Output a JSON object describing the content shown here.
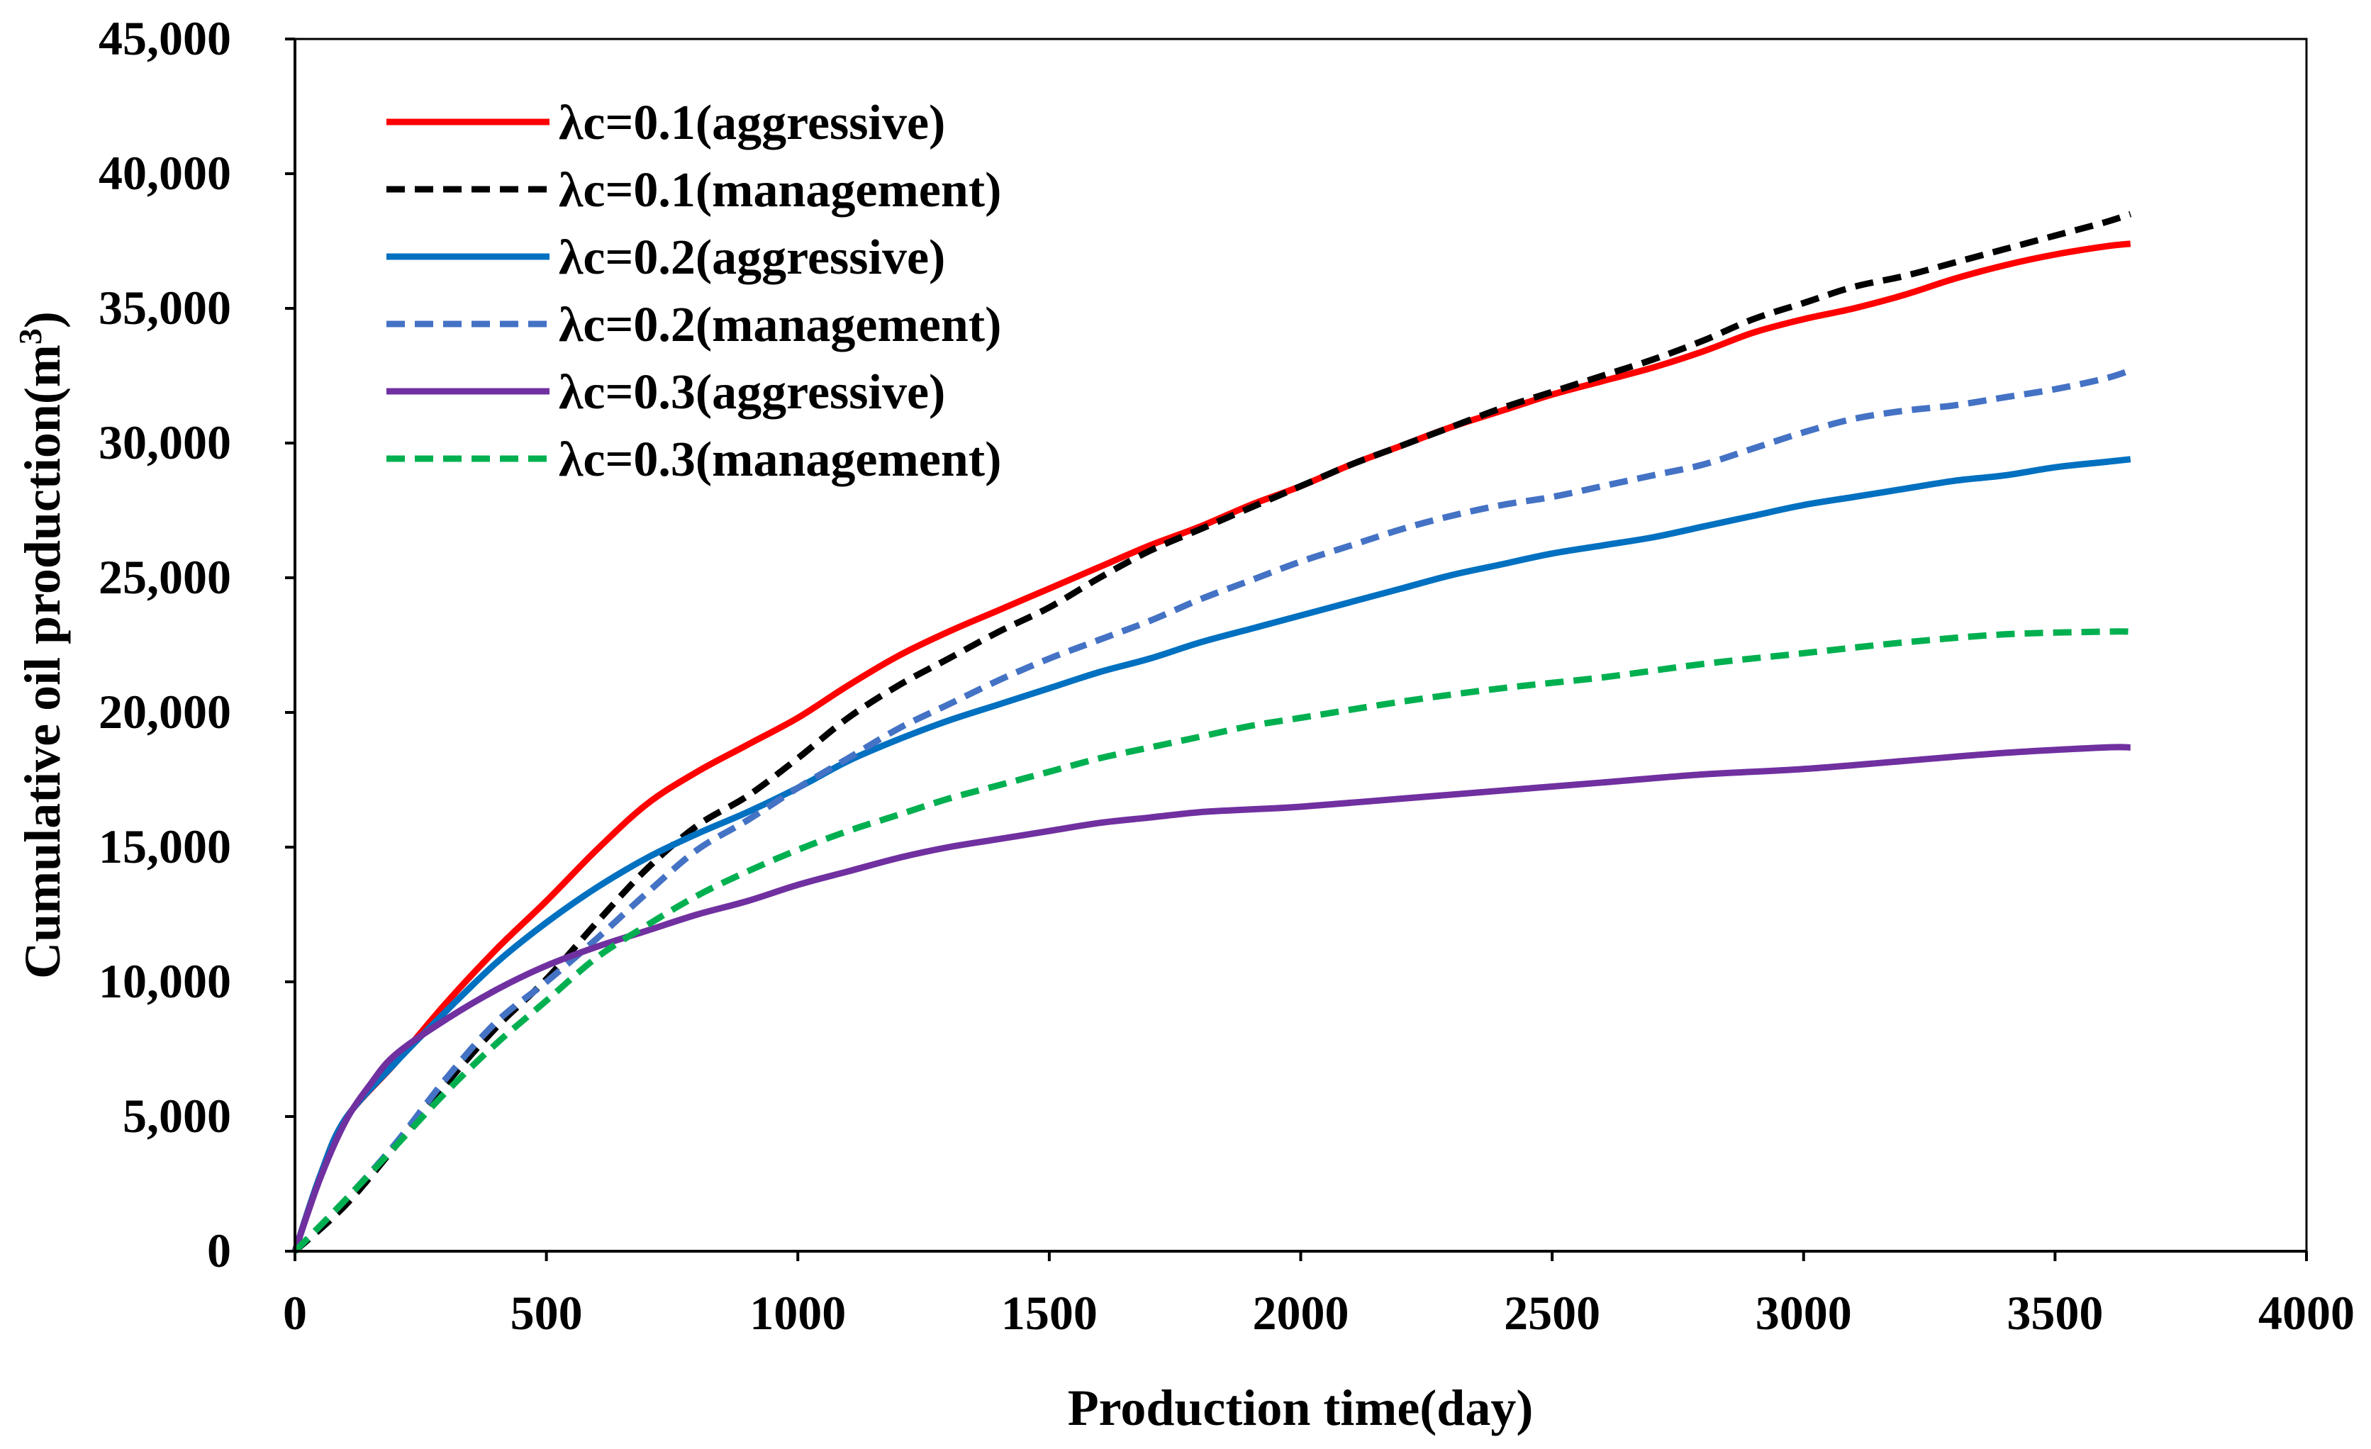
{
  "chart_data": {
    "type": "line",
    "title": "",
    "xlabel": "Production time(day)",
    "ylabel_main": "Cumulative oil production(m",
    "ylabel_sup": "3",
    "ylabel_close": ")",
    "xlim": [
      0,
      4000
    ],
    "ylim": [
      0,
      45000
    ],
    "x_ticks": [
      0,
      500,
      1000,
      1500,
      2000,
      2500,
      3000,
      3500,
      4000
    ],
    "x_tick_labels": [
      "0",
      "500",
      "1000",
      "1500",
      "2000",
      "2500",
      "3000",
      "3500",
      "4000"
    ],
    "y_ticks": [
      0,
      5000,
      10000,
      15000,
      20000,
      25000,
      30000,
      35000,
      40000,
      45000
    ],
    "y_tick_labels": [
      "0",
      "5,000",
      "10,000",
      "15,000",
      "20,000",
      "25,000",
      "30,000",
      "35,000",
      "40,000",
      "45,000"
    ],
    "grid": false,
    "legend_position": "top-left",
    "series": [
      {
        "name": "λc=0.1(aggressive)",
        "color": "#ff0000",
        "dash": "solid",
        "x": [
          0,
          50,
          100,
          200,
          300,
          400,
          500,
          600,
          700,
          800,
          900,
          1000,
          1100,
          1200,
          1300,
          1400,
          1500,
          1600,
          1700,
          1800,
          1900,
          2000,
          2100,
          2200,
          2300,
          2400,
          2500,
          2600,
          2700,
          2800,
          2900,
          3000,
          3100,
          3200,
          3300,
          3400,
          3500,
          3600,
          3650
        ],
        "y": [
          0,
          2800,
          4900,
          7000,
          9200,
          11200,
          13000,
          14900,
          16600,
          17800,
          18800,
          19800,
          21000,
          22100,
          23000,
          23800,
          24600,
          25400,
          26200,
          26900,
          27700,
          28400,
          29200,
          29900,
          30600,
          31200,
          31800,
          32300,
          32800,
          33400,
          34100,
          34600,
          35000,
          35500,
          36100,
          36600,
          37000,
          37300,
          37400
        ]
      },
      {
        "name": "λc=0.1(management)",
        "color": "#000000",
        "dash": "dash",
        "x": [
          0,
          100,
          200,
          300,
          400,
          500,
          600,
          700,
          800,
          900,
          1000,
          1100,
          1200,
          1300,
          1400,
          1500,
          1600,
          1700,
          1800,
          1900,
          2000,
          2100,
          2200,
          2300,
          2400,
          2500,
          2600,
          2700,
          2800,
          2900,
          3000,
          3100,
          3200,
          3300,
          3400,
          3500,
          3600,
          3650
        ],
        "y": [
          0,
          1700,
          3900,
          6200,
          8300,
          10100,
          12200,
          14200,
          15800,
          16900,
          18300,
          19800,
          21000,
          22000,
          23000,
          23900,
          25000,
          26000,
          26800,
          27600,
          28400,
          29200,
          29900,
          30600,
          31300,
          31900,
          32500,
          33100,
          33800,
          34600,
          35200,
          35800,
          36200,
          36700,
          37200,
          37700,
          38200,
          38500
        ]
      },
      {
        "name": "λc=0.2(aggressive)",
        "color": "#0070c0",
        "dash": "solid",
        "x": [
          0,
          50,
          100,
          200,
          300,
          400,
          500,
          600,
          700,
          800,
          900,
          1000,
          1100,
          1200,
          1300,
          1400,
          1500,
          1600,
          1700,
          1800,
          1900,
          2000,
          2100,
          2200,
          2300,
          2400,
          2500,
          2600,
          2700,
          2800,
          2900,
          3000,
          3100,
          3200,
          3300,
          3400,
          3500,
          3600,
          3650
        ],
        "y": [
          0,
          2800,
          4900,
          7000,
          8900,
          10700,
          12200,
          13500,
          14600,
          15500,
          16300,
          17200,
          18200,
          19000,
          19700,
          20300,
          20900,
          21500,
          22000,
          22600,
          23100,
          23600,
          24100,
          24600,
          25100,
          25500,
          25900,
          26200,
          26500,
          26900,
          27300,
          27700,
          28000,
          28300,
          28600,
          28800,
          29100,
          29300,
          29400
        ]
      },
      {
        "name": "λc=0.2(management)",
        "color": "#4472c4",
        "dash": "dash",
        "x": [
          0,
          100,
          200,
          300,
          400,
          500,
          600,
          700,
          800,
          900,
          1000,
          1100,
          1200,
          1300,
          1400,
          1500,
          1600,
          1700,
          1800,
          1900,
          2000,
          2100,
          2200,
          2300,
          2400,
          2500,
          2600,
          2700,
          2800,
          2900,
          3000,
          3100,
          3200,
          3300,
          3400,
          3500,
          3600,
          3650
        ],
        "y": [
          0,
          1900,
          4000,
          6400,
          8500,
          10000,
          11600,
          13300,
          14900,
          16000,
          17200,
          18300,
          19400,
          20300,
          21200,
          22000,
          22700,
          23400,
          24200,
          24900,
          25600,
          26200,
          26800,
          27300,
          27700,
          28000,
          28400,
          28800,
          29200,
          29800,
          30400,
          30900,
          31200,
          31400,
          31700,
          32000,
          32400,
          32700
        ]
      },
      {
        "name": "λc=0.3(aggressive)",
        "color": "#7030a0",
        "dash": "solid",
        "x": [
          0,
          50,
          100,
          150,
          200,
          300,
          400,
          500,
          600,
          700,
          800,
          900,
          1000,
          1100,
          1200,
          1300,
          1400,
          1500,
          1600,
          1700,
          1800,
          1900,
          2000,
          2200,
          2400,
          2600,
          2800,
          3000,
          3200,
          3400,
          3600,
          3650
        ],
        "y": [
          0,
          2700,
          4800,
          6200,
          7300,
          8600,
          9700,
          10600,
          11300,
          11900,
          12500,
          13000,
          13600,
          14100,
          14600,
          15000,
          15300,
          15600,
          15900,
          16100,
          16300,
          16400,
          16500,
          16800,
          17100,
          17400,
          17700,
          17900,
          18200,
          18500,
          18700,
          18700
        ]
      },
      {
        "name": "λc=0.3(management)",
        "color": "#00b050",
        "dash": "dash",
        "x": [
          0,
          100,
          200,
          300,
          400,
          500,
          600,
          700,
          800,
          900,
          1000,
          1100,
          1200,
          1300,
          1400,
          1500,
          1600,
          1700,
          1800,
          1900,
          2000,
          2200,
          2400,
          2600,
          2800,
          3000,
          3200,
          3400,
          3600,
          3650
        ],
        "y": [
          0,
          1900,
          3900,
          5900,
          7700,
          9300,
          10900,
          12100,
          13200,
          14100,
          14900,
          15600,
          16200,
          16800,
          17300,
          17800,
          18300,
          18700,
          19100,
          19500,
          19800,
          20400,
          20900,
          21300,
          21800,
          22200,
          22600,
          22900,
          23000,
          23000
        ]
      }
    ]
  }
}
